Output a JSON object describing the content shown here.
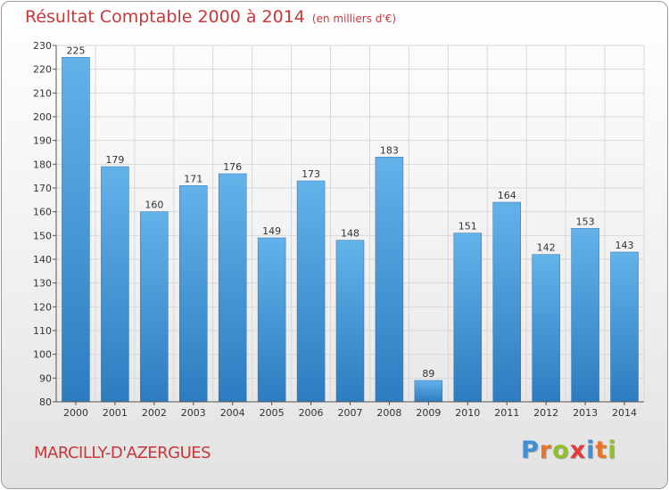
{
  "title": "Résultat Comptable 2000 à 2014",
  "subtitle": "(en milliers d'€)",
  "city": "MARCILLY-D'AZERGUES",
  "logo": {
    "text": "Proxiti",
    "colors": [
      "#3d8fd6",
      "#e8732a",
      "#8fbf2a",
      "#e23a3a",
      "#3d8fd6",
      "#e8732a",
      "#8fbf2a"
    ]
  },
  "colors": {
    "title": "#c8373a",
    "bar_top": "#63b2ea",
    "bar_bottom": "#2d7cc0",
    "grid": "#d8d8d8"
  },
  "chart_data": {
    "type": "bar",
    "title": "Résultat Comptable 2000 à 2014",
    "categories": [
      "2000",
      "2001",
      "2002",
      "2003",
      "2004",
      "2005",
      "2006",
      "2007",
      "2008",
      "2009",
      "2010",
      "2011",
      "2012",
      "2013",
      "2014"
    ],
    "values": [
      225,
      179,
      160,
      171,
      176,
      149,
      173,
      148,
      183,
      89,
      151,
      164,
      142,
      153,
      143
    ],
    "ylim": [
      80,
      230
    ],
    "yticks": [
      80,
      90,
      100,
      110,
      120,
      130,
      140,
      150,
      160,
      170,
      180,
      190,
      200,
      210,
      220,
      230
    ],
    "grid": true,
    "data_labels": true
  }
}
